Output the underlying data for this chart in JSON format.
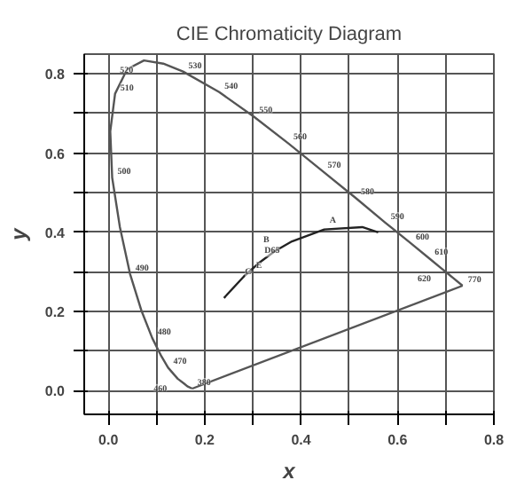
{
  "chart_data": {
    "type": "line",
    "title": "CIE Chromaticity Diagram",
    "xlabel": "x",
    "ylabel": "y",
    "xlim": [
      -0.05,
      0.8
    ],
    "ylim": [
      -0.06,
      0.85
    ],
    "xticks": [
      {
        "value": 0.0,
        "label": "0.0"
      },
      {
        "value": 0.1,
        "label": null
      },
      0.2,
      {
        "value": 0.3,
        "label": null
      },
      0.4,
      {
        "value": 0.5,
        "label": null
      },
      0.6,
      {
        "value": 0.7,
        "label": null
      },
      0.8
    ],
    "yticks": [
      {
        "value": 0.0,
        "label": "0.0"
      },
      {
        "value": 0.1,
        "label": null
      },
      0.2,
      {
        "value": 0.3,
        "label": null
      },
      0.4,
      {
        "value": 0.5,
        "label": null
      },
      0.6,
      {
        "value": 0.7,
        "label": null
      },
      0.8
    ],
    "grid": true,
    "marker": "none",
    "line_style": "solid",
    "series": [
      {
        "color": "#555555",
        "x": [
          0.174,
          0.164,
          0.157,
          0.144,
          0.124,
          0.11,
          0.091,
          0.069,
          0.045,
          0.024,
          0.008,
          0.004,
          0.014,
          0.039,
          0.074,
          0.114,
          0.155,
          0.23,
          0.302,
          0.373,
          0.444,
          0.513,
          0.575,
          0.627,
          0.666,
          0.692,
          0.735
        ],
        "values": [
          0.005,
          0.011,
          0.018,
          0.03,
          0.058,
          0.087,
          0.133,
          0.201,
          0.295,
          0.413,
          0.538,
          0.655,
          0.75,
          0.812,
          0.834,
          0.826,
          0.806,
          0.754,
          0.692,
          0.625,
          0.555,
          0.487,
          0.424,
          0.373,
          0.334,
          0.308,
          0.265
        ]
      },
      {
        "color": "#555555",
        "x": [
          0.174,
          0.735
        ],
        "values": [
          0.005,
          0.265
        ]
      },
      {
        "color": "#222222",
        "x": [
          0.24,
          0.281,
          0.314,
          0.345,
          0.381,
          0.448,
          0.527,
          0.56
        ],
        "values": [
          0.234,
          0.288,
          0.324,
          0.352,
          0.377,
          0.407,
          0.413,
          0.4
        ]
      }
    ],
    "annotations": [
      {
        "text": "380",
        "x": 0.174,
        "y": 0.005
      },
      {
        "text": "460",
        "x": 0.144,
        "y": 0.03
      },
      {
        "text": "470",
        "x": 0.124,
        "y": 0.058
      },
      {
        "text": "480",
        "x": 0.091,
        "y": 0.133
      },
      {
        "text": "490",
        "x": 0.045,
        "y": 0.295
      },
      {
        "text": "500",
        "x": 0.008,
        "y": 0.538
      },
      {
        "text": "510",
        "x": 0.014,
        "y": 0.75
      },
      {
        "text": "520",
        "x": 0.074,
        "y": 0.834
      },
      {
        "text": "530",
        "x": 0.155,
        "y": 0.806
      },
      {
        "text": "540",
        "x": 0.23,
        "y": 0.754
      },
      {
        "text": "550",
        "x": 0.302,
        "y": 0.692
      },
      {
        "text": "560",
        "x": 0.373,
        "y": 0.625
      },
      {
        "text": "570",
        "x": 0.444,
        "y": 0.555
      },
      {
        "text": "580",
        "x": 0.513,
        "y": 0.487
      },
      {
        "text": "590",
        "x": 0.575,
        "y": 0.424
      },
      {
        "text": "600",
        "x": 0.627,
        "y": 0.373
      },
      {
        "text": "610",
        "x": 0.666,
        "y": 0.334
      },
      {
        "text": "620",
        "x": 0.692,
        "y": 0.308
      },
      {
        "text": "770",
        "x": 0.735,
        "y": 0.265
      },
      {
        "text": "D65",
        "x": 0.313,
        "y": 0.329
      },
      {
        "text": "C",
        "x": 0.31,
        "y": 0.316
      },
      {
        "text": "E",
        "x": 0.333,
        "y": 0.333
      },
      {
        "text": "B",
        "x": 0.348,
        "y": 0.352
      },
      {
        "text": "A",
        "x": 0.448,
        "y": 0.407
      }
    ]
  }
}
